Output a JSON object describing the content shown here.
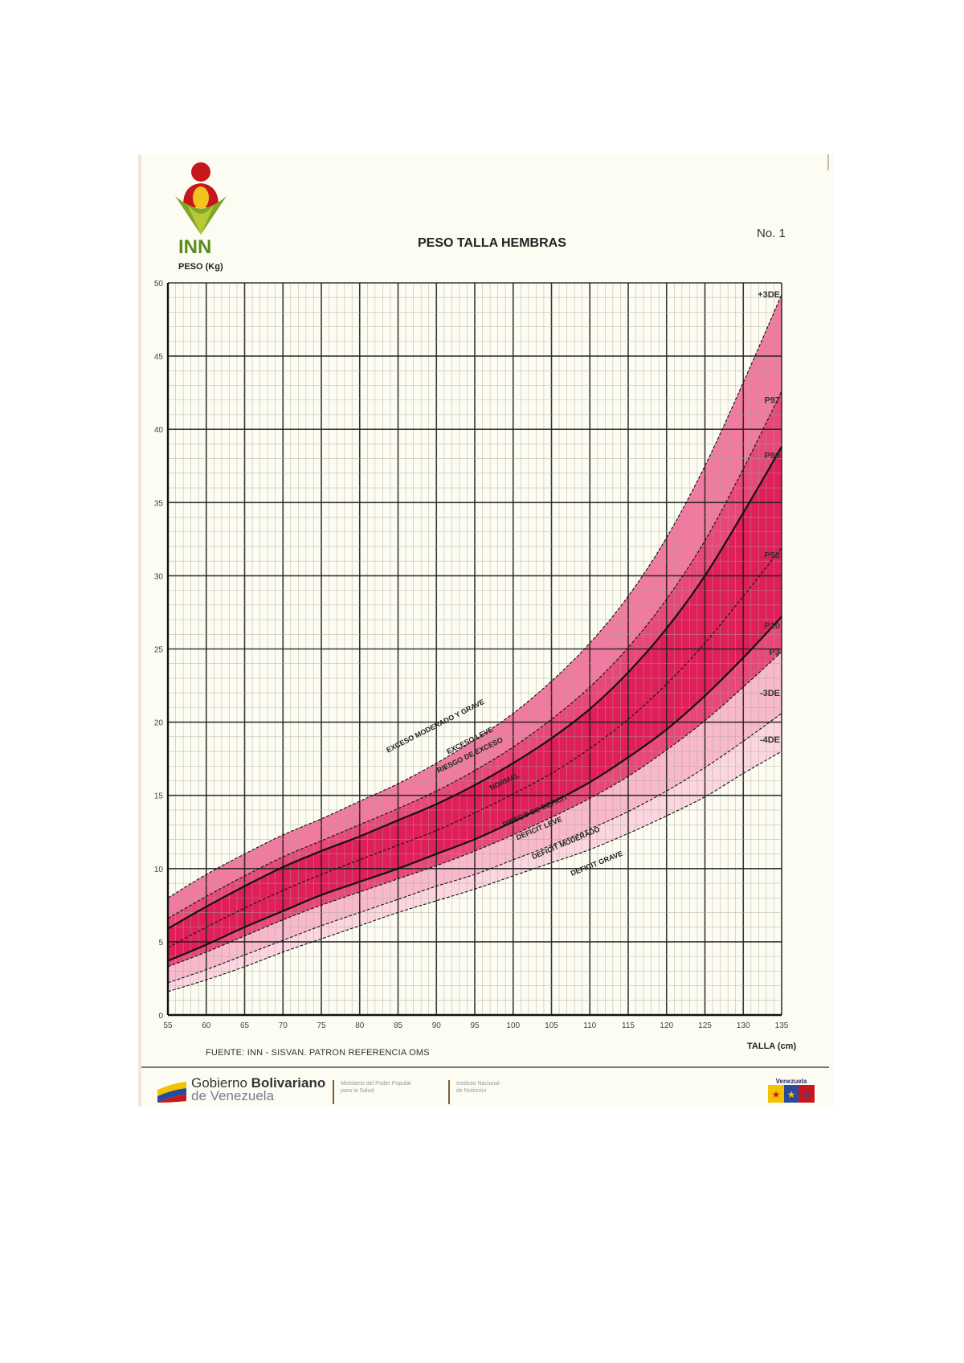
{
  "header": {
    "logo_text": "INN",
    "title": "PESO TALLA HEMBRAS",
    "chart_number": "No. 1",
    "y_axis_title": "PESO (Kg)",
    "x_axis_title": "TALLA (cm)"
  },
  "footer": {
    "source": "FUENTE: INN - SISVAN. PATRON REFERENCIA OMS",
    "gov_line1_regular": "Gobierno ",
    "gov_line1_bold": "Bolivariano",
    "gov_line2": "de Venezuela",
    "ministry_line1": "Ministerio del Poder Popular",
    "ministry_line2": "para la Salud",
    "institute_line1": "Instituto Nacional",
    "institute_line2": "de Nutrición",
    "badge_text": "Venezuela"
  },
  "colors": {
    "band_outer": "#f07aa0",
    "band_mid": "#e8477a",
    "band_inner": "#e01e5a",
    "band_low_light": "#f8b9cc",
    "band_lowest": "#fbd6e0",
    "grid_major": "#222222",
    "grid_minor": "#a7a78a",
    "paper": "#fdfcf3"
  },
  "chart_data": {
    "type": "line",
    "title": "PESO TALLA HEMBRAS",
    "xlabel": "TALLA (cm)",
    "ylabel": "PESO (Kg)",
    "xlim": [
      55,
      135
    ],
    "ylim": [
      0,
      50
    ],
    "x_ticks": [
      55,
      60,
      65,
      70,
      75,
      80,
      85,
      90,
      95,
      100,
      105,
      110,
      115,
      120,
      125,
      130,
      135
    ],
    "y_ticks": [
      0,
      5,
      10,
      15,
      20,
      25,
      30,
      35,
      40,
      45,
      50
    ],
    "grid": true,
    "x": [
      55,
      60,
      65,
      70,
      75,
      80,
      85,
      90,
      95,
      100,
      105,
      110,
      115,
      120,
      125,
      130,
      135
    ],
    "series": [
      {
        "name": "+3DE",
        "style": "dashed",
        "values": [
          8.0,
          9.6,
          11.0,
          12.3,
          13.4,
          14.6,
          15.8,
          17.2,
          18.8,
          20.6,
          22.8,
          25.4,
          28.6,
          32.6,
          37.5,
          43.2,
          49.2
        ]
      },
      {
        "name": "P97",
        "style": "dashed",
        "values": [
          6.6,
          8.1,
          9.5,
          10.8,
          11.9,
          13.0,
          14.1,
          15.3,
          16.7,
          18.3,
          20.2,
          22.4,
          25.1,
          28.4,
          32.4,
          37.3,
          42.6
        ]
      },
      {
        "name": "P90",
        "style": "solid",
        "values": [
          5.9,
          7.4,
          8.8,
          10.1,
          11.2,
          12.2,
          13.3,
          14.4,
          15.7,
          17.2,
          18.9,
          20.9,
          23.4,
          26.4,
          30.0,
          34.3,
          38.8
        ]
      },
      {
        "name": "P50",
        "style": "dashed",
        "values": [
          4.6,
          6.0,
          7.3,
          8.5,
          9.6,
          10.6,
          11.6,
          12.6,
          13.8,
          15.1,
          16.5,
          18.2,
          20.2,
          22.6,
          25.4,
          28.6,
          31.9
        ]
      },
      {
        "name": "P10",
        "style": "solid",
        "values": [
          3.7,
          4.8,
          6.0,
          7.1,
          8.2,
          9.1,
          10.0,
          11.0,
          12.0,
          13.2,
          14.5,
          15.9,
          17.6,
          19.5,
          21.8,
          24.4,
          27.2
        ]
      },
      {
        "name": "P3",
        "style": "dashed",
        "values": [
          3.3,
          4.3,
          5.4,
          6.5,
          7.5,
          8.4,
          9.3,
          10.2,
          11.2,
          12.3,
          13.5,
          14.8,
          16.3,
          18.1,
          20.1,
          22.4,
          24.8
        ]
      },
      {
        "name": "-3DE",
        "style": "dashed",
        "values": [
          2.2,
          3.1,
          4.1,
          5.1,
          6.1,
          7.0,
          7.9,
          8.8,
          9.6,
          10.6,
          11.6,
          12.7,
          13.9,
          15.3,
          16.9,
          18.7,
          20.6
        ]
      },
      {
        "name": "-4DE",
        "style": "dashed",
        "values": [
          1.6,
          2.4,
          3.3,
          4.3,
          5.2,
          6.1,
          7.0,
          7.8,
          8.6,
          9.5,
          10.4,
          11.3,
          12.4,
          13.6,
          14.9,
          16.5,
          18.0
        ]
      }
    ],
    "curve_labels": [
      "+3DE",
      "P97",
      "P90",
      "P50",
      "P10",
      "P3",
      "-3DE",
      "-4DE"
    ],
    "zone_labels": [
      "EXCESO MODERADO Y GRAVE",
      "EXCESO LEVE",
      "RIESGO DE EXCESO",
      "NORMAL",
      "RIESGO DE DEFICIT",
      "DEFICIT LEVE",
      "DEFICIT MODERADO",
      "DEFICIT GRAVE"
    ]
  }
}
